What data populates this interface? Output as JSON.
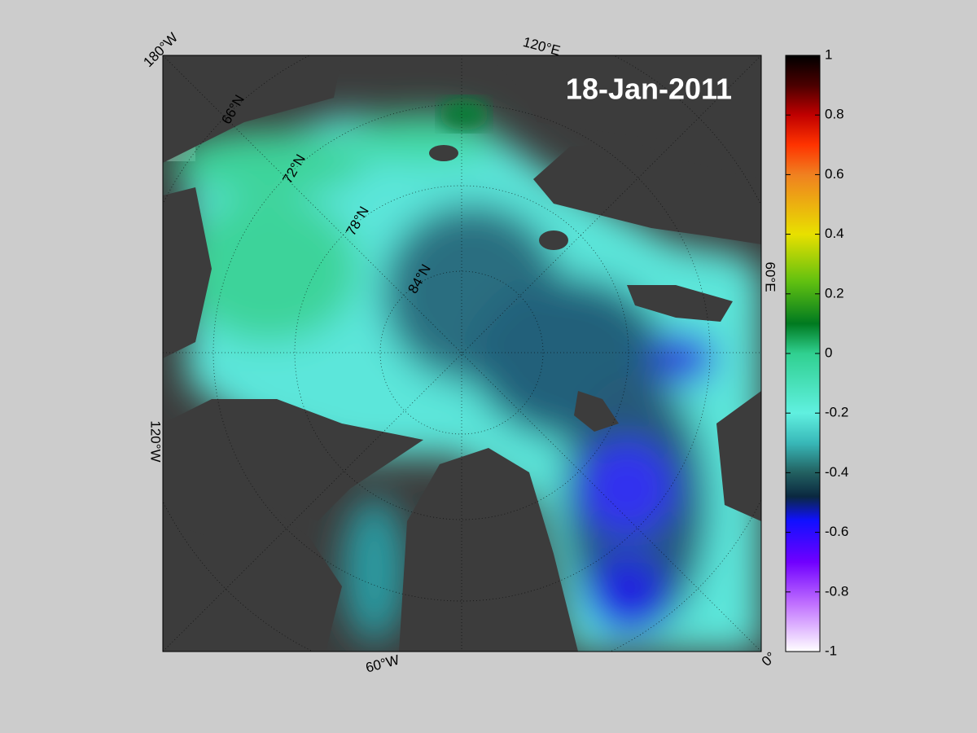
{
  "map": {
    "date": "18-Jan-2011",
    "longitude_labels": [
      "180°W",
      "120°E",
      "60°E",
      "0°",
      "60°W",
      "120°W"
    ],
    "latitude_labels": [
      "66°N",
      "72°N",
      "78°N",
      "84°N"
    ]
  },
  "colorbar": {
    "limits": [
      -1,
      1
    ],
    "ticks": [
      1,
      0.8,
      0.6,
      0.4,
      0.2,
      0,
      -0.2,
      -0.4,
      -0.6,
      -0.8,
      -1
    ]
  }
}
